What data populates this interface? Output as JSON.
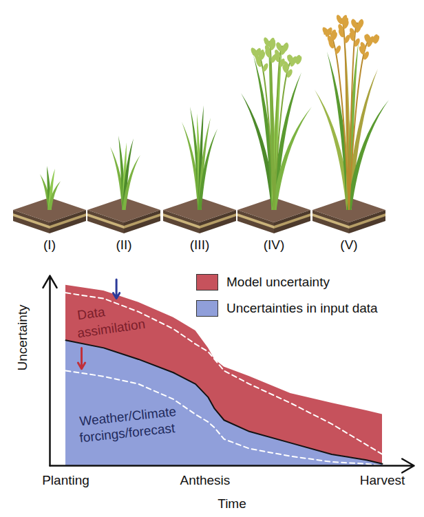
{
  "chart_data": {
    "type": "area",
    "stacked": true,
    "stages": [
      "(I)",
      "(II)",
      "(III)",
      "(IV)",
      "(V)"
    ],
    "x_label": "Time",
    "y_label": "Uncertainty",
    "x": [
      0,
      12,
      23,
      34,
      41,
      45,
      47,
      50,
      58,
      71,
      84,
      95,
      100
    ],
    "xlim": [
      -5,
      110
    ],
    "xticks": [
      {
        "value": 0,
        "label": "Planting"
      },
      {
        "value": 44,
        "label": "Anthesis"
      },
      {
        "value": 100,
        "label": "Harvest"
      }
    ],
    "ylim": [
      0,
      100
    ],
    "yticks": [],
    "tick_labels": "x",
    "legend": "top-right",
    "series": [
      {
        "name": "Model uncertainty",
        "color": "#c6525c",
        "values": [
          29,
          30,
          30,
          29,
          28,
          26,
          26,
          28,
          29,
          26,
          27,
          26,
          26
        ]
      },
      {
        "name": "Uncertainties in input data",
        "color": "#909fda",
        "values": [
          66,
          62,
          56,
          49,
          43,
          36,
          30,
          24,
          18,
          12,
          6,
          3,
          1
        ]
      },
      {
        "type": "line",
        "line_style": "dashed",
        "color": "#ffffff",
        "values": [
          91,
          88,
          81,
          72,
          64,
          60,
          56,
          50,
          43,
          33,
          22,
          11,
          6
        ]
      },
      {
        "type": "line",
        "line_style": "dashed",
        "color": "#ffffff",
        "values": [
          50,
          47,
          43,
          35,
          27,
          23,
          20,
          14,
          9,
          5,
          2,
          1,
          0
        ]
      }
    ],
    "annotations": [
      "Data assimilation",
      "Weather/Climate forcings/forecast"
    ]
  }
}
